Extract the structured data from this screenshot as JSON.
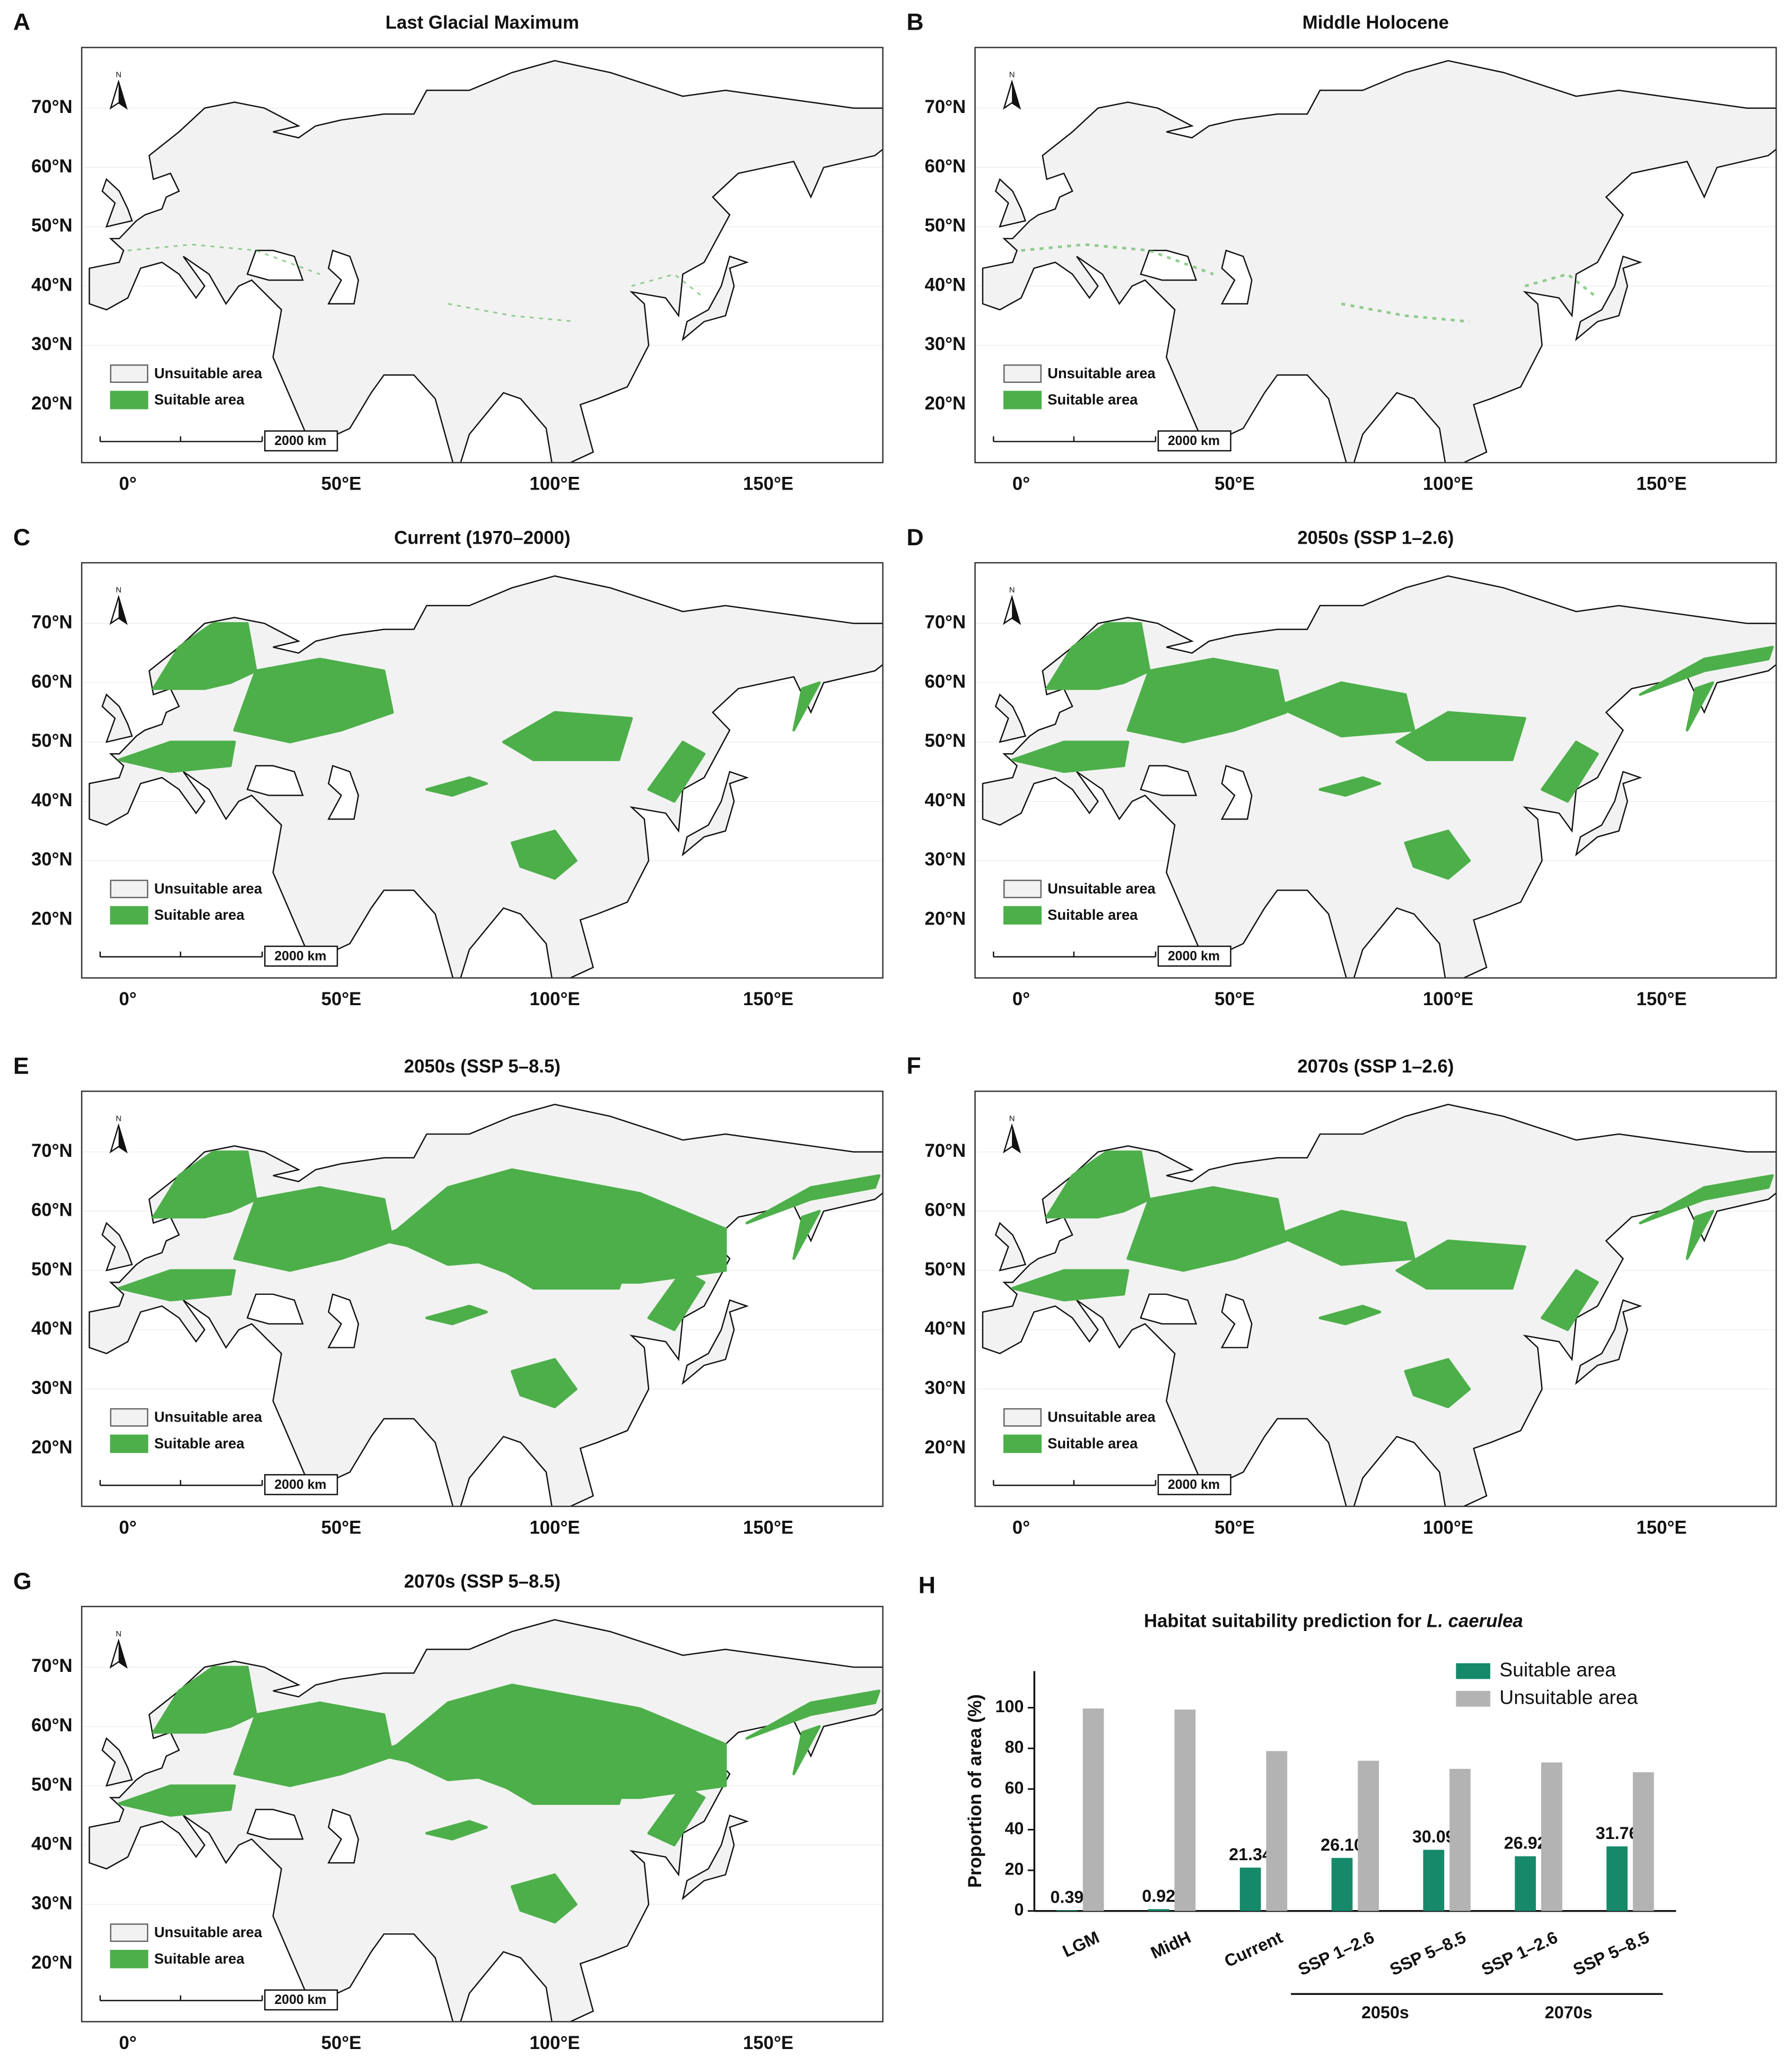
{
  "maps": {
    "lat_labels": [
      "70°N",
      "60°N",
      "50°N",
      "40°N",
      "30°N",
      "20°N"
    ],
    "lon_labels": [
      "0°",
      "50°E",
      "100°E",
      "150°E"
    ],
    "legend": [
      "Unsuitable area",
      "Suitable area"
    ],
    "scale_bar": "2000 km",
    "north": "N",
    "panels": [
      {
        "letter": "A",
        "title": "Last Glacial Maximum"
      },
      {
        "letter": "B",
        "title": "Middle Holocene"
      },
      {
        "letter": "C",
        "title": "Current (1970–2000)"
      },
      {
        "letter": "D",
        "title": "2050s (SSP 1–2.6)"
      },
      {
        "letter": "E",
        "title": "2050s (SSP 5–8.5)"
      },
      {
        "letter": "F",
        "title": "2070s (SSP 1–2.6)"
      },
      {
        "letter": "G",
        "title": "2070s (SSP 5–8.5)"
      }
    ]
  },
  "chart_data": {
    "type": "bar",
    "panel_letter": "H",
    "title": "Habitat suitability prediction for",
    "title_species": "L. caerulea",
    "y_label": "Proportion of area (%)",
    "categories": [
      "LGM",
      "MidH",
      "Current",
      "SSP 1–2.6",
      "SSP 5–8.5",
      "SSP 1–2.6",
      "SSP 5–8.5"
    ],
    "category_groups": [
      null,
      null,
      null,
      "2050s",
      "2050s",
      "2070s",
      "2070s"
    ],
    "series": [
      {
        "name": "Suitable area",
        "color": "#17896b",
        "values": [
          0.39,
          0.92,
          21.34,
          26.1,
          30.09,
          26.92,
          31.76
        ],
        "value_labels": [
          "0.39",
          "0.92",
          "21.34",
          "26.10",
          "30.09",
          "26.92",
          "31.76"
        ]
      },
      {
        "name": "Unsuitable area",
        "color": "#b3b3b3",
        "values": [
          99.61,
          99.08,
          78.66,
          73.9,
          69.91,
          73.08,
          68.24
        ]
      }
    ],
    "ylim": [
      0,
      118
    ],
    "yticks": [
      0,
      20,
      40,
      60,
      80,
      100
    ],
    "legend": "upper right"
  }
}
